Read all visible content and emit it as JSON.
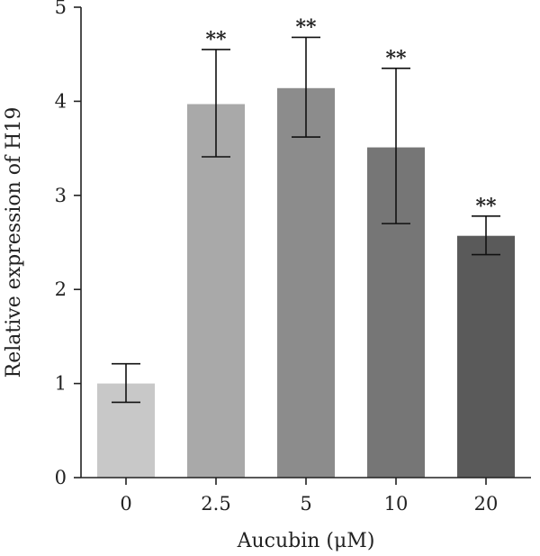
{
  "chart_data": {
    "type": "bar",
    "title": "",
    "xlabel": "Aucubin (μM)",
    "ylabel": "Relative expression of H19",
    "categories": [
      "0",
      "2.5",
      "5",
      "10",
      "20"
    ],
    "values": [
      1.0,
      3.97,
      4.14,
      3.51,
      2.57
    ],
    "error_low": [
      0.8,
      3.41,
      3.62,
      2.7,
      2.37
    ],
    "error_high": [
      1.21,
      4.55,
      4.68,
      4.35,
      2.78
    ],
    "significance": [
      "",
      "**",
      "**",
      "**",
      "**"
    ],
    "bar_colors": [
      "#c8c8c8",
      "#a9a9a9",
      "#8c8c8c",
      "#767676",
      "#5a5a5a"
    ],
    "ylim": [
      0,
      5
    ],
    "yticks": [
      "0",
      "1",
      "2",
      "3",
      "4",
      "5"
    ],
    "grid": false,
    "legend": "none"
  }
}
